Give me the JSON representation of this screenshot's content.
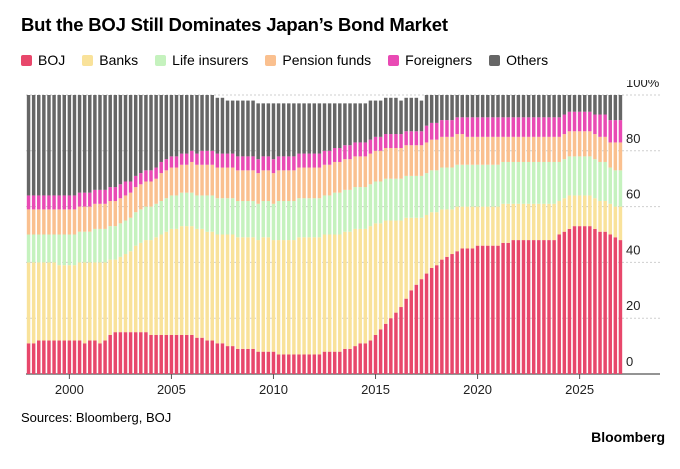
{
  "title": "But the BOJ Still Dominates Japan’s Bond Market",
  "source": "Sources: Bloomberg, BOJ",
  "brand": "Bloomberg",
  "chart_data": {
    "type": "bar",
    "stacked": true,
    "percent_stacked": true,
    "title": "But the BOJ Still Dominates Japan’s Bond Market",
    "xlabel": "",
    "ylabel": "",
    "ylim": [
      0,
      100
    ],
    "y_ticks": [
      "0",
      "20",
      "40",
      "60",
      "80",
      "100%"
    ],
    "x_ticks": [
      "2000",
      "2005",
      "2010",
      "2015",
      "2020",
      "2025"
    ],
    "legend_position": "top-left",
    "grid": true,
    "x_start": 1998.0,
    "x_step": 0.25,
    "series": [
      {
        "name": "BOJ",
        "color": "#e8476b",
        "values": [
          11,
          11,
          12,
          12,
          12,
          12,
          12,
          12,
          12,
          12,
          12,
          11,
          12,
          12,
          11,
          12,
          14,
          15,
          15,
          15,
          15,
          15,
          15,
          15,
          14,
          14,
          14,
          14,
          14,
          14,
          14,
          14,
          14,
          13,
          13,
          12,
          12,
          11,
          11,
          10,
          10,
          9,
          9,
          9,
          9,
          8,
          8,
          8,
          8,
          7,
          7,
          7,
          7,
          7,
          7,
          7,
          7,
          7,
          8,
          8,
          8,
          8,
          9,
          9,
          10,
          11,
          11,
          12,
          14,
          16,
          18,
          20,
          22,
          24,
          27,
          30,
          32,
          34,
          36,
          38,
          39,
          41,
          42,
          43,
          44,
          45,
          45,
          45,
          46,
          46,
          46,
          46,
          46,
          47,
          47,
          48,
          48,
          48,
          48,
          48,
          48,
          48,
          48,
          48,
          50,
          51,
          52,
          53,
          53,
          53,
          53,
          52,
          51,
          51,
          50,
          49,
          48
        ]
      },
      {
        "name": "Banks",
        "color": "#f9e29a",
        "values": [
          29,
          29,
          28,
          28,
          28,
          28,
          27,
          27,
          27,
          27,
          28,
          29,
          28,
          28,
          29,
          28,
          27,
          26,
          27,
          28,
          29,
          31,
          32,
          33,
          34,
          35,
          36,
          37,
          38,
          38,
          39,
          39,
          39,
          39,
          39,
          39,
          39,
          39,
          39,
          40,
          40,
          40,
          40,
          40,
          40,
          40,
          41,
          41,
          40,
          41,
          41,
          41,
          41,
          42,
          42,
          42,
          42,
          42,
          42,
          42,
          42,
          42,
          42,
          42,
          42,
          41,
          41,
          41,
          40,
          38,
          37,
          35,
          33,
          31,
          29,
          26,
          24,
          22,
          21,
          20,
          19,
          18,
          17,
          16,
          16,
          15,
          15,
          15,
          14,
          14,
          14,
          14,
          14,
          14,
          14,
          13,
          13,
          13,
          13,
          13,
          13,
          13,
          13,
          13,
          12,
          12,
          12,
          11,
          11,
          11,
          11,
          11,
          11,
          11,
          11,
          11,
          12
        ]
      },
      {
        "name": "Life insurers",
        "color": "#c5f2be",
        "values": [
          10,
          10,
          10,
          10,
          10,
          10,
          11,
          11,
          11,
          11,
          11,
          11,
          11,
          12,
          12,
          12,
          12,
          12,
          12,
          12,
          12,
          12,
          12,
          12,
          12,
          12,
          12,
          12,
          12,
          12,
          12,
          12,
          12,
          12,
          12,
          13,
          13,
          13,
          13,
          13,
          13,
          13,
          13,
          13,
          13,
          13,
          13,
          13,
          13,
          14,
          14,
          14,
          14,
          14,
          14,
          14,
          14,
          14,
          14,
          14,
          15,
          15,
          15,
          15,
          15,
          15,
          15,
          15,
          15,
          15,
          15,
          15,
          15,
          15,
          15,
          15,
          15,
          15,
          15,
          15,
          15,
          15,
          15,
          15,
          15,
          15,
          15,
          15,
          15,
          15,
          15,
          15,
          15,
          15,
          15,
          15,
          15,
          15,
          15,
          15,
          15,
          15,
          15,
          15,
          14,
          14,
          14,
          14,
          14,
          14,
          14,
          14,
          14,
          14,
          13,
          13,
          13
        ]
      },
      {
        "name": "Pension funds",
        "color": "#fac08f",
        "values": [
          9,
          9,
          9,
          9,
          9,
          9,
          9,
          9,
          9,
          9,
          9,
          9,
          9,
          9,
          9,
          9,
          9,
          9,
          9,
          9,
          9,
          9,
          9,
          9,
          9,
          9,
          10,
          10,
          10,
          10,
          10,
          10,
          11,
          11,
          11,
          11,
          11,
          11,
          11,
          11,
          11,
          11,
          11,
          11,
          11,
          11,
          11,
          11,
          11,
          11,
          11,
          11,
          11,
          11,
          11,
          11,
          11,
          11,
          11,
          11,
          11,
          11,
          11,
          11,
          11,
          11,
          11,
          11,
          11,
          11,
          11,
          11,
          11,
          11,
          11,
          11,
          11,
          11,
          11,
          11,
          11,
          11,
          11,
          11,
          11,
          11,
          10,
          10,
          10,
          10,
          10,
          10,
          10,
          9,
          9,
          9,
          9,
          9,
          9,
          9,
          9,
          9,
          9,
          9,
          9,
          9,
          9,
          9,
          9,
          9,
          9,
          9,
          9,
          9,
          9,
          10,
          10
        ]
      },
      {
        "name": "Foreigners",
        "color": "#e94ab4",
        "values": [
          5,
          5,
          5,
          5,
          5,
          5,
          5,
          5,
          5,
          5,
          5,
          5,
          5,
          5,
          5,
          5,
          5,
          5,
          5,
          5,
          4,
          4,
          4,
          4,
          4,
          4,
          4,
          4,
          4,
          4,
          4,
          4,
          4,
          4,
          5,
          5,
          5,
          5,
          5,
          5,
          5,
          5,
          5,
          5,
          5,
          5,
          5,
          5,
          5,
          5,
          5,
          5,
          5,
          5,
          5,
          5,
          5,
          5,
          5,
          5,
          5,
          5,
          5,
          5,
          5,
          5,
          5,
          5,
          5,
          5,
          5,
          5,
          5,
          5,
          5,
          5,
          5,
          5,
          6,
          6,
          6,
          6,
          6,
          6,
          6,
          6,
          7,
          7,
          7,
          7,
          7,
          7,
          7,
          7,
          7,
          7,
          7,
          7,
          7,
          7,
          7,
          7,
          7,
          7,
          7,
          7,
          7,
          7,
          7,
          7,
          7,
          7,
          8,
          8,
          8,
          8,
          8
        ]
      },
      {
        "name": "Others",
        "color": "#666666",
        "values": [
          36,
          36,
          36,
          36,
          36,
          36,
          36,
          36,
          36,
          36,
          35,
          35,
          35,
          34,
          34,
          34,
          33,
          33,
          32,
          31,
          31,
          29,
          28,
          27,
          27,
          26,
          24,
          23,
          22,
          22,
          21,
          21,
          20,
          21,
          20,
          20,
          20,
          20,
          20,
          19,
          19,
          20,
          20,
          20,
          20,
          20,
          19,
          19,
          20,
          19,
          19,
          19,
          19,
          18,
          18,
          18,
          18,
          18,
          17,
          17,
          16,
          16,
          15,
          15,
          14,
          14,
          14,
          14,
          13,
          13,
          13,
          13,
          13,
          12,
          12,
          12,
          12,
          11,
          11,
          10,
          10,
          9,
          9,
          9,
          8,
          8,
          8,
          8,
          8,
          8,
          8,
          8,
          8,
          8,
          8,
          8,
          8,
          8,
          8,
          8,
          8,
          8,
          8,
          8,
          8,
          7,
          6,
          6,
          6,
          6,
          6,
          7,
          7,
          7,
          9,
          9,
          9
        ]
      }
    ]
  }
}
